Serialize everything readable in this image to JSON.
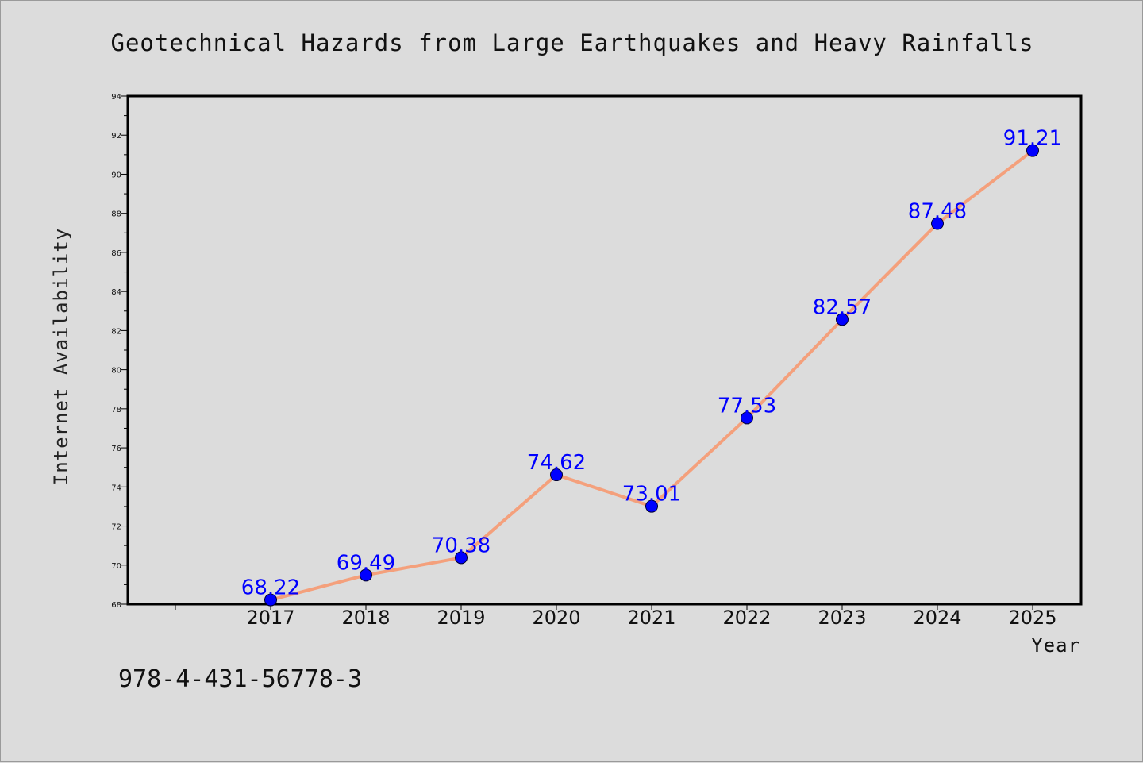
{
  "chart_data": {
    "type": "line",
    "title": "Geotechnical Hazards from Large Earthquakes and Heavy Rainfalls",
    "xlabel": "Year",
    "ylabel": "Internet Availability",
    "categories": [
      "2017",
      "2018",
      "2019",
      "2020",
      "2021",
      "2022",
      "2023",
      "2024",
      "2025"
    ],
    "series": [
      {
        "values": [
          68.22,
          69.49,
          70.38,
          74.62,
          73.01,
          77.53,
          82.57,
          87.48,
          91.21
        ]
      }
    ],
    "data_labels": [
      "68.22",
      "69.49",
      "70.38",
      "74.62",
      "73.01",
      "77.53",
      "82.57",
      "87.48",
      "91.21"
    ],
    "ylim": [
      68,
      94
    ],
    "yticks": [
      "68",
      "70",
      "72",
      "74",
      "76",
      "78",
      "80",
      "82",
      "84",
      "86",
      "88",
      "90",
      "92",
      "94"
    ],
    "grid": false,
    "legend": "none",
    "line_color": "#f4a07c",
    "marker_color": "#0000ff",
    "label_color": "#0000ff"
  },
  "annotation": "978-4-431-56778-3"
}
